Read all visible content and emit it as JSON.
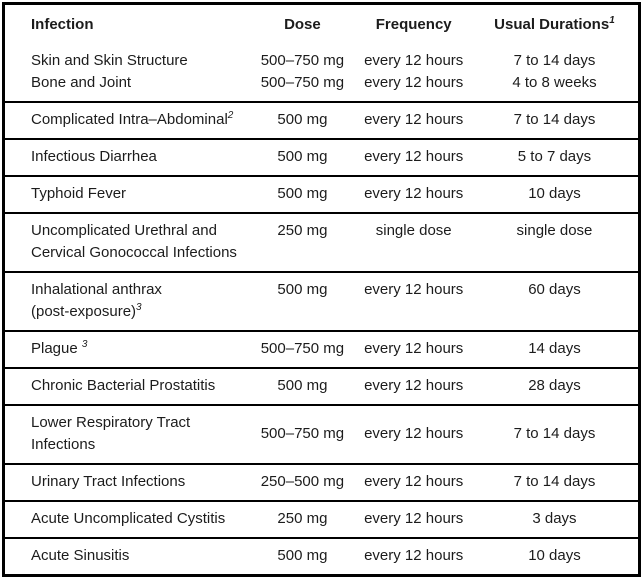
{
  "colors": {
    "text": "#1c1c1c",
    "border": "#000000",
    "background": "#ffffff"
  },
  "table": {
    "columns": [
      {
        "label": "Infection",
        "sup": ""
      },
      {
        "label": "Dose",
        "sup": ""
      },
      {
        "label": "Frequency",
        "sup": ""
      },
      {
        "label": "Usual Durations",
        "sup": "1"
      }
    ],
    "rows": [
      {
        "infection": [
          {
            "text": "Skin and Skin Structure",
            "sup": ""
          },
          {
            "text": "Bone and Joint",
            "sup": ""
          }
        ],
        "dose": [
          "500–750 mg",
          "500–750 mg"
        ],
        "frequency": [
          "every 12 hours",
          "every 12 hours"
        ],
        "duration": [
          "7 to 14 days",
          "4 to 8 weeks"
        ],
        "valign": "top"
      },
      {
        "infection": [
          {
            "text": "Complicated Intra–Abdominal",
            "sup": "2"
          }
        ],
        "dose": [
          "500 mg"
        ],
        "frequency": [
          "every 12 hours"
        ],
        "duration": [
          "7 to 14 days"
        ],
        "valign": "middle"
      },
      {
        "infection": [
          {
            "text": "Infectious Diarrhea",
            "sup": ""
          }
        ],
        "dose": [
          "500 mg"
        ],
        "frequency": [
          "every 12 hours"
        ],
        "duration": [
          "5 to 7 days"
        ],
        "valign": "middle"
      },
      {
        "infection": [
          {
            "text": "Typhoid Fever",
            "sup": ""
          }
        ],
        "dose": [
          "500 mg"
        ],
        "frequency": [
          "every 12 hours"
        ],
        "duration": [
          "10 days"
        ],
        "valign": "middle"
      },
      {
        "infection": [
          {
            "text": "Uncomplicated Urethral and",
            "sup": ""
          },
          {
            "text": "Cervical Gonococcal Infections",
            "sup": ""
          }
        ],
        "dose": [
          "250 mg"
        ],
        "frequency": [
          "single dose"
        ],
        "duration": [
          "single dose"
        ],
        "valign": "top"
      },
      {
        "infection": [
          {
            "text": "Inhalational anthrax",
            "sup": ""
          },
          {
            "text": "(post-exposure)",
            "sup": "3"
          }
        ],
        "dose": [
          "500 mg"
        ],
        "frequency": [
          "every 12 hours"
        ],
        "duration": [
          "60 days"
        ],
        "valign": "top"
      },
      {
        "infection": [
          {
            "text": "Plague ",
            "sup": "3"
          }
        ],
        "dose": [
          "500–750 mg"
        ],
        "frequency": [
          "every 12 hours"
        ],
        "duration": [
          "14 days"
        ],
        "valign": "middle"
      },
      {
        "infection": [
          {
            "text": "Chronic Bacterial Prostatitis",
            "sup": ""
          }
        ],
        "dose": [
          "500 mg"
        ],
        "frequency": [
          "every 12 hours"
        ],
        "duration": [
          "28 days"
        ],
        "valign": "middle"
      },
      {
        "infection": [
          {
            "text": "Lower Respiratory Tract",
            "sup": ""
          },
          {
            "text": "Infections",
            "sup": ""
          }
        ],
        "dose": [
          "500–750 mg"
        ],
        "frequency": [
          "every 12 hours"
        ],
        "duration": [
          "7 to 14 days"
        ],
        "valign": "middle"
      },
      {
        "infection": [
          {
            "text": "Urinary Tract Infections",
            "sup": ""
          }
        ],
        "dose": [
          "250–500 mg"
        ],
        "frequency": [
          "every 12 hours"
        ],
        "duration": [
          "7 to 14 days"
        ],
        "valign": "middle"
      },
      {
        "infection": [
          {
            "text": "Acute Uncomplicated Cystitis",
            "sup": ""
          }
        ],
        "dose": [
          "250 mg"
        ],
        "frequency": [
          "every 12 hours"
        ],
        "duration": [
          "3 days"
        ],
        "valign": "middle"
      },
      {
        "infection": [
          {
            "text": "Acute Sinusitis",
            "sup": ""
          }
        ],
        "dose": [
          "500 mg"
        ],
        "frequency": [
          "every 12 hours"
        ],
        "duration": [
          "10 days"
        ],
        "valign": "middle"
      }
    ]
  }
}
